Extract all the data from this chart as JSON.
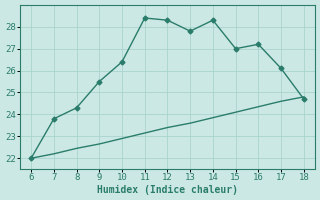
{
  "x": [
    6,
    7,
    8,
    9,
    10,
    11,
    12,
    13,
    14,
    15,
    16,
    17,
    18
  ],
  "y_upper": [
    22.0,
    23.8,
    24.3,
    25.5,
    26.4,
    28.4,
    28.3,
    27.8,
    28.3,
    27.0,
    27.2,
    26.1,
    24.7
  ],
  "y_lower": [
    22.0,
    22.2,
    22.45,
    22.65,
    22.9,
    23.15,
    23.4,
    23.6,
    23.85,
    24.1,
    24.35,
    24.6,
    24.8
  ],
  "line_color": "#2a7d6b",
  "bg_color": "#cce8e4",
  "grid_color": "#aad4ce",
  "xlabel": "Humidex (Indice chaleur)",
  "ylim": [
    21.5,
    29.0
  ],
  "xlim": [
    5.5,
    18.5
  ],
  "yticks": [
    22,
    23,
    24,
    25,
    26,
    27,
    28
  ],
  "xticks": [
    6,
    7,
    8,
    9,
    10,
    11,
    12,
    13,
    14,
    15,
    16,
    17,
    18
  ],
  "marker": "D",
  "markersize": 2.5,
  "linewidth": 1.0
}
